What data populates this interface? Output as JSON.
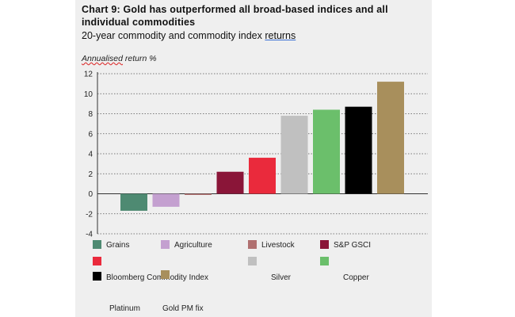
{
  "chart_data": {
    "type": "bar",
    "title": "Chart 9: Gold has outperformed all broad-based indices and all individual commodities",
    "subtitle_main": "20-year commodity and commodity index ",
    "subtitle_link": "returns",
    "ylabel_main": "Annualised",
    "ylabel_rest": " return %",
    "ylim": [
      -4,
      12
    ],
    "yticks": [
      "12",
      "10",
      "8",
      "6",
      "4",
      "2",
      "0",
      "-2",
      "-4"
    ],
    "grid": true,
    "categories": [
      "Grains",
      "Agriculture",
      "Livestock",
      "S&P GSCI",
      "",
      "",
      "",
      "Bloomberg Commodity Index",
      "Silver",
      "Copper",
      "Platinum",
      "Gold PM fix"
    ],
    "series": [
      {
        "name": "Grains",
        "value": -1.7,
        "color": "#4e8a72"
      },
      {
        "name": "Agriculture",
        "value": -1.3,
        "color": "#c4a0d0"
      },
      {
        "name": "Livestock",
        "value": -0.1,
        "color": "#b07070"
      },
      {
        "name": "S&P GSCI",
        "value": 2.2,
        "color": "#8a1538"
      },
      {
        "name": "Bloomberg Commodity Index",
        "value": 3.6,
        "color": "#ea2a3c"
      },
      {
        "name": "Silver",
        "value": 7.8,
        "color": "#c0c0c0"
      },
      {
        "name": "Copper",
        "value": 8.4,
        "color": "#6bbf6b"
      },
      {
        "name": "Platinum",
        "value": 8.7,
        "color": "#000000"
      },
      {
        "name": "Gold PM fix",
        "value": 11.2,
        "color": "#a88f5c"
      }
    ],
    "legend": {
      "row1": [
        {
          "label": "Grains",
          "color": "#4e8a72"
        },
        {
          "label": "Agriculture",
          "color": "#c4a0d0"
        },
        {
          "label": "Livestock",
          "color": "#b07070"
        },
        {
          "label": "S&P GSCI",
          "color": "#8a1538"
        }
      ],
      "row2_swatches": [
        {
          "color": "#ea2a3c"
        },
        {
          "color": "#c0c0c0"
        },
        {
          "color": "#6bbf6b"
        }
      ],
      "row3": [
        {
          "label": "Bloomberg Commodity Index",
          "color": "#000000"
        },
        {
          "label": "",
          "color": "#a88f5c"
        },
        {
          "label": "Silver",
          "color": ""
        },
        {
          "label": "Copper",
          "color": ""
        }
      ],
      "row4": [
        {
          "label": "Platinum"
        },
        {
          "label": "Gold PM fix"
        }
      ]
    }
  }
}
